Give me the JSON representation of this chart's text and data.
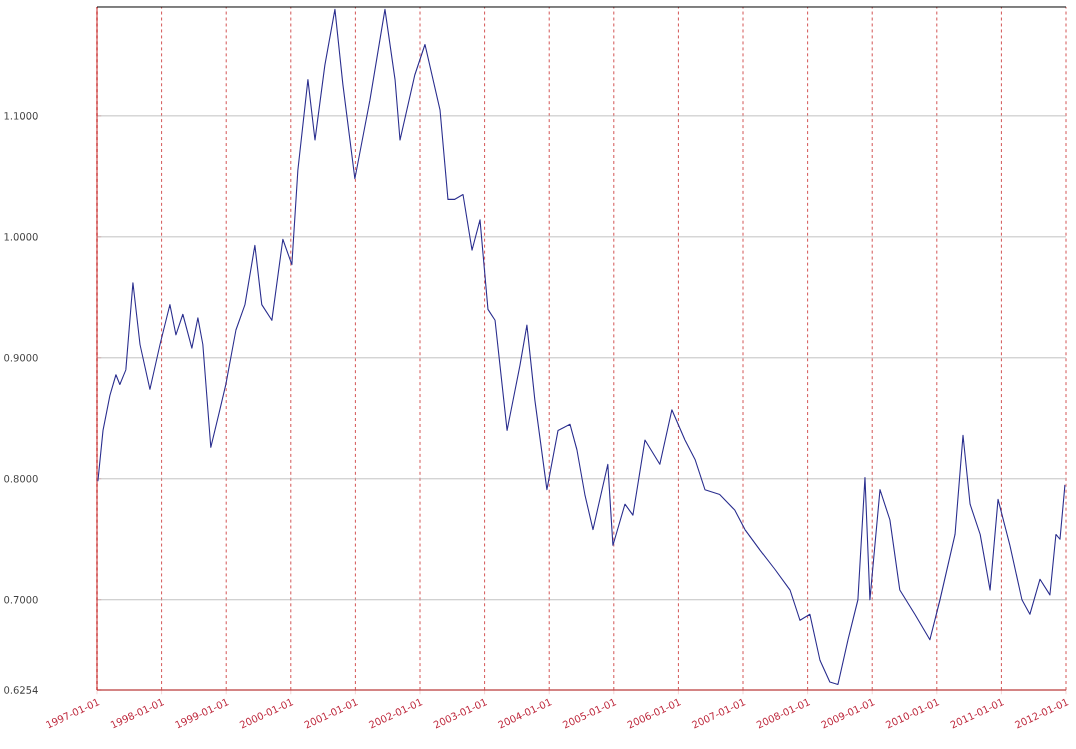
{
  "chart_data": {
    "type": "line",
    "x": [
      "1997-01-06",
      "1997-02-04",
      "1997-03-15",
      "1997-04-18",
      "1997-05-10",
      "1997-06-13",
      "1997-07-23",
      "1997-09-01",
      "1997-10-27",
      "1997-12-23",
      "1998-02-17",
      "1998-03-23",
      "1998-05-01",
      "1998-06-21",
      "1998-07-25",
      "1998-08-22",
      "1998-10-06",
      "1998-11-26",
      "1998-12-30",
      "1999-02-25",
      "1999-04-17",
      "1999-06-12",
      "1999-07-21",
      "1999-09-16",
      "1999-11-17",
      "2000-01-07",
      "2000-02-10",
      "2000-04-07",
      "2000-05-17",
      "2000-07-12",
      "2000-09-07",
      "2000-10-22",
      "2000-12-29",
      "2001-03-24",
      "2001-06-17",
      "2001-08-13",
      "2001-09-10",
      "2001-12-03",
      "2002-01-29",
      "2002-04-24",
      "2002-06-08",
      "2002-07-17",
      "2002-09-01",
      "2002-10-22",
      "2002-12-06",
      "2003-01-20",
      "2003-03-01",
      "2003-05-08",
      "2003-07-20",
      "2003-08-28",
      "2003-10-12",
      "2003-12-19",
      "2004-02-20",
      "2004-04-28",
      "2004-06-06",
      "2004-07-21",
      "2004-09-05",
      "2004-11-28",
      "2004-12-27",
      "2005-03-05",
      "2005-04-19",
      "2005-06-26",
      "2005-09-18",
      "2005-11-25",
      "2006-02-07",
      "2006-04-05",
      "2006-05-31",
      "2006-08-23",
      "2006-11-16",
      "2007-01-12",
      "2007-04-07",
      "2007-07-01",
      "2007-09-24",
      "2007-11-19",
      "2008-01-14",
      "2008-03-11",
      "2008-05-06",
      "2008-06-21",
      "2008-08-17",
      "2008-10-12",
      "2008-11-21",
      "2008-12-19",
      "2009-02-14",
      "2009-04-11",
      "2009-06-06",
      "2009-08-30",
      "2009-11-23",
      "2010-01-19",
      "2010-04-14",
      "2010-05-29",
      "2010-07-08",
      "2010-09-03",
      "2010-10-29",
      "2010-12-13",
      "2011-02-18",
      "2011-04-27",
      "2011-06-11",
      "2011-08-07",
      "2011-10-02",
      "2011-11-05",
      "2011-11-28",
      "2011-12-26"
    ],
    "series": [
      {
        "color": "#2b2f8f",
        "values": [
          0.798,
          0.84,
          0.869,
          0.886,
          0.878,
          0.89,
          0.962,
          0.911,
          0.874,
          0.911,
          0.944,
          0.919,
          0.936,
          0.908,
          0.933,
          0.911,
          0.826,
          0.857,
          0.878,
          0.923,
          0.944,
          0.993,
          0.944,
          0.931,
          0.998,
          0.977,
          1.055,
          1.13,
          1.08,
          1.142,
          1.188,
          1.126,
          1.048,
          1.113,
          1.188,
          1.13,
          1.08,
          1.134,
          1.159,
          1.105,
          1.031,
          1.031,
          1.035,
          0.989,
          1.014,
          0.94,
          0.931,
          0.84,
          0.894,
          0.927,
          0.865,
          0.791,
          0.84,
          0.845,
          0.824,
          0.787,
          0.758,
          0.812,
          0.745,
          0.779,
          0.77,
          0.832,
          0.812,
          0.857,
          0.832,
          0.816,
          0.791,
          0.787,
          0.774,
          0.758,
          0.741,
          0.725,
          0.708,
          0.683,
          0.688,
          0.65,
          0.632,
          0.63,
          0.667,
          0.7,
          0.801,
          0.7,
          0.791,
          0.766,
          0.708,
          0.688,
          0.667,
          0.7,
          0.754,
          0.836,
          0.779,
          0.754,
          0.708,
          0.783,
          0.745,
          0.7,
          0.688,
          0.717,
          0.704,
          0.754,
          0.75,
          0.795
        ]
      }
    ],
    "xlim": [
      "1997-01-01",
      "2012-01-01"
    ],
    "xticks": [
      "1997-01-01",
      "1998-01-01",
      "1999-01-01",
      "2000-01-01",
      "2001-01-01",
      "2002-01-01",
      "2003-01-01",
      "2004-01-01",
      "2005-01-01",
      "2006-01-01",
      "2007-01-01",
      "2008-01-01",
      "2009-01-01",
      "2010-01-01",
      "2011-01-01",
      "2012-01-01"
    ],
    "ylim": [
      0.6254,
      1.19
    ],
    "yticks": [
      0.6254,
      {
        "value": 0.7,
        "label": "0.7000"
      },
      {
        "value": 0.8,
        "label": "0.8000"
      },
      {
        "value": 0.9,
        "label": "0.9000"
      },
      {
        "value": 1.0,
        "label": "1.0000"
      },
      {
        "value": 1.1,
        "label": "1.1000"
      }
    ],
    "grid": true,
    "marker": "none",
    "line_style": "solid"
  }
}
